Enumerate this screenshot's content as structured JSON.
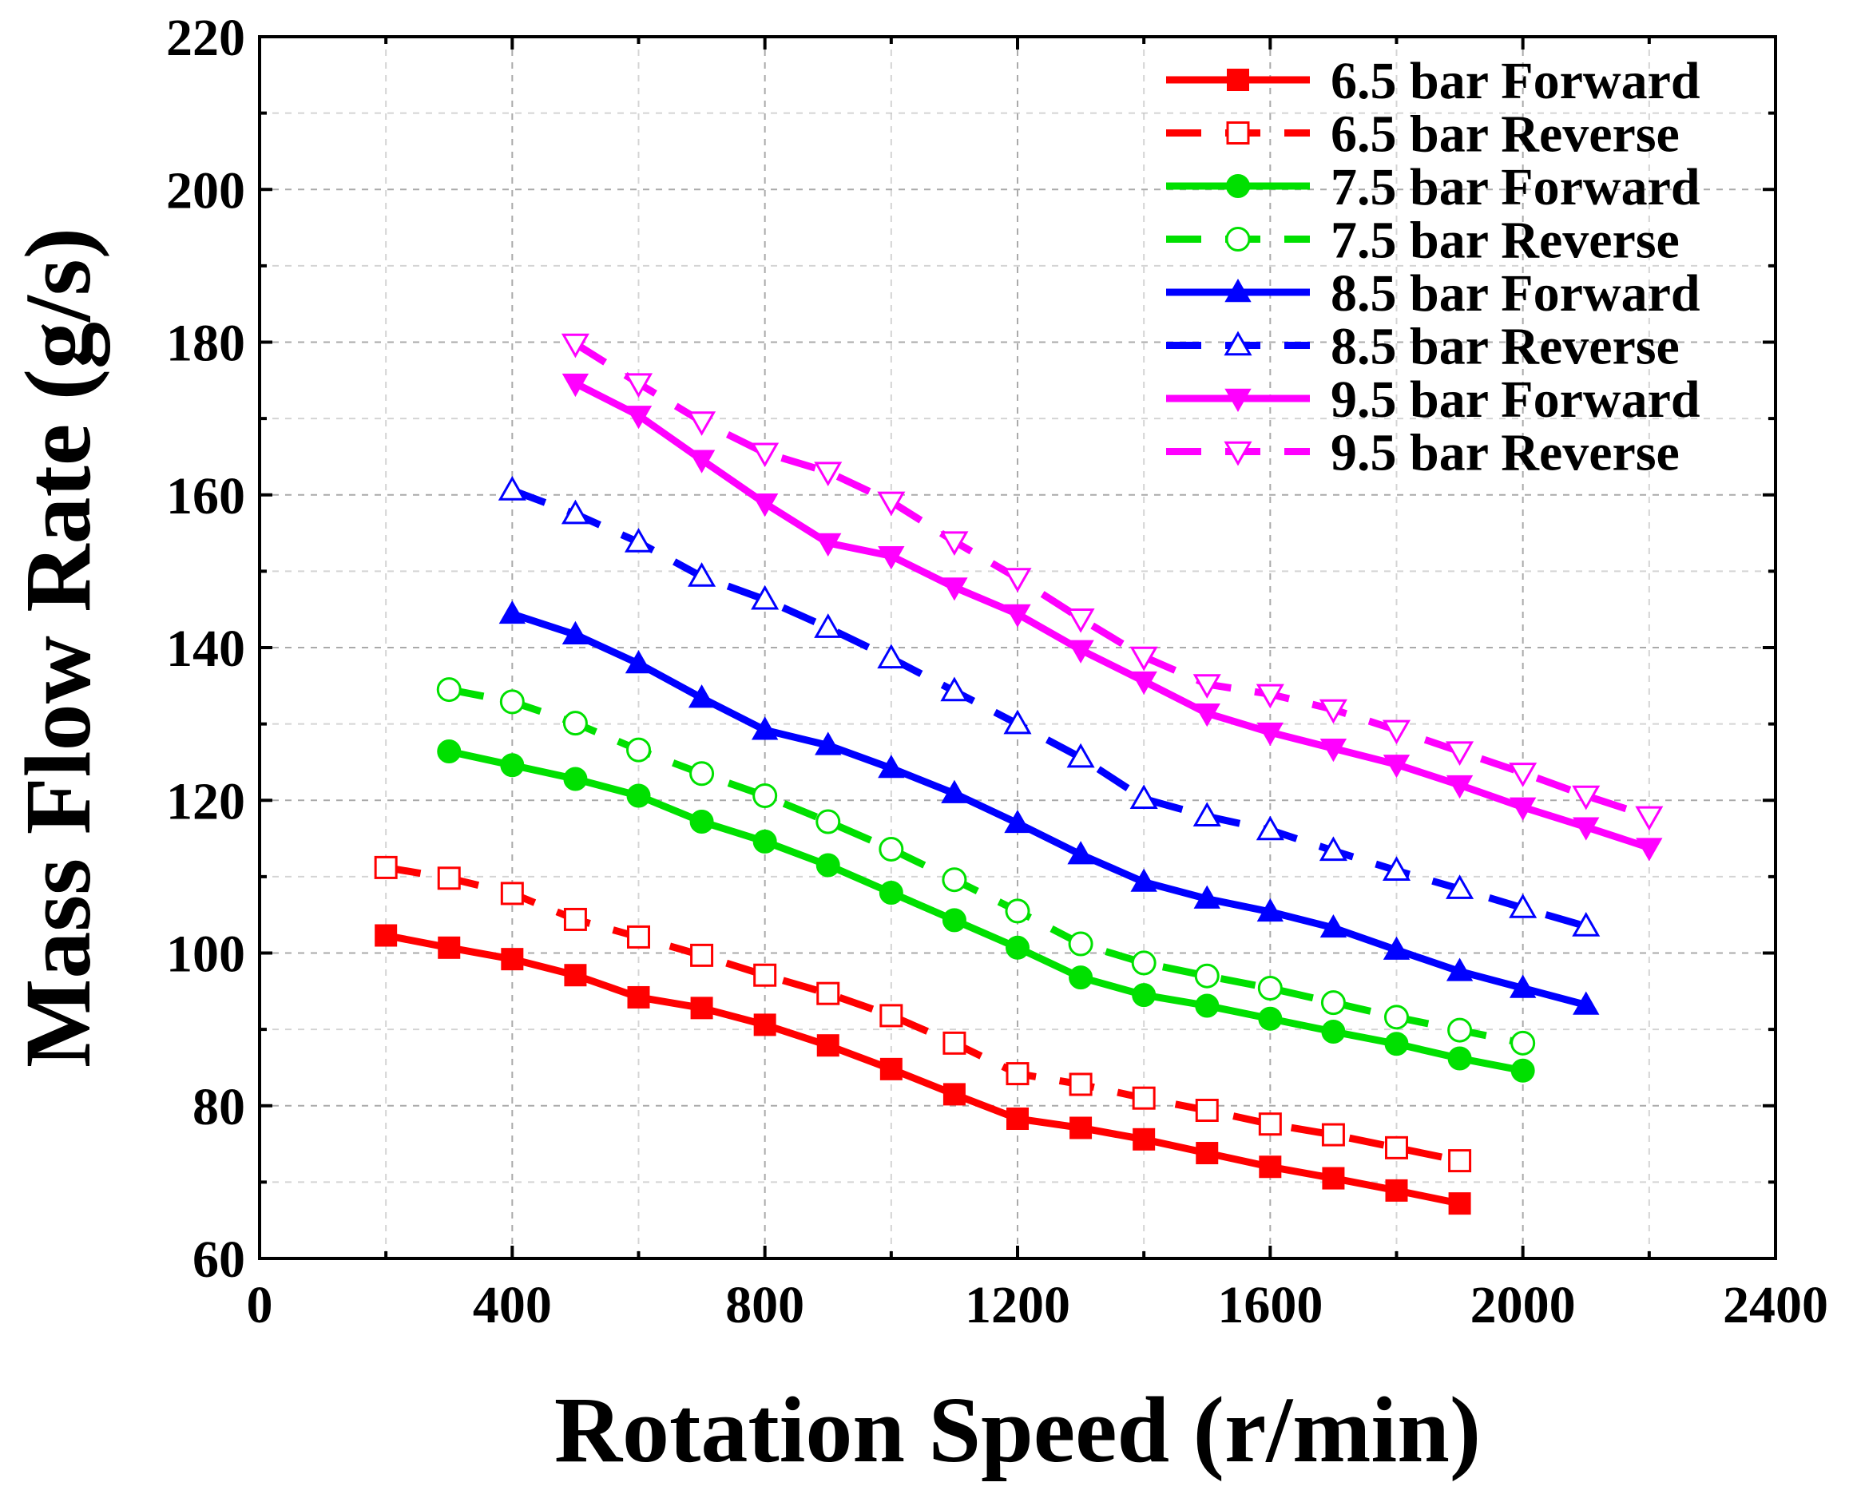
{
  "chart_data": {
    "type": "line",
    "title": "",
    "xlabel": "Rotation Speed (r/min)",
    "ylabel": "Mass Flow Rate (g/s)",
    "xlim": [
      0,
      2400
    ],
    "ylim": [
      60,
      220
    ],
    "xticks": [
      0,
      400,
      800,
      1200,
      1600,
      2000,
      2400
    ],
    "yticks": [
      60,
      80,
      100,
      120,
      140,
      160,
      180,
      200,
      220
    ],
    "grid": true,
    "legend_position": "top-right",
    "series": [
      {
        "name": "6.5 bar Forward",
        "color": "#ff0000",
        "line": "solid",
        "marker": "square",
        "filled": true,
        "x": [
          200,
          300,
          400,
          500,
          600,
          700,
          800,
          900,
          1000,
          1100,
          1200,
          1300,
          1400,
          1500,
          1600,
          1700,
          1800,
          1900
        ],
        "y": [
          102.3,
          100.7,
          99.2,
          97.1,
          94.2,
          92.8,
          90.6,
          87.9,
          84.8,
          81.5,
          78.3,
          77.1,
          75.6,
          73.8,
          72.0,
          70.5,
          68.9,
          67.2
        ]
      },
      {
        "name": "6.5 bar Reverse",
        "color": "#ff0000",
        "line": "dashed",
        "marker": "square",
        "filled": false,
        "x": [
          200,
          300,
          400,
          500,
          600,
          700,
          800,
          900,
          1000,
          1100,
          1200,
          1300,
          1400,
          1500,
          1600,
          1700,
          1800,
          1900
        ],
        "y": [
          111.2,
          109.8,
          107.8,
          104.4,
          102.1,
          99.7,
          97.1,
          94.7,
          91.8,
          88.2,
          84.2,
          82.8,
          81.0,
          79.4,
          77.6,
          76.2,
          74.5,
          72.8
        ]
      },
      {
        "name": "7.5 bar Forward",
        "color": "#00e000",
        "line": "solid",
        "marker": "circle",
        "filled": true,
        "x": [
          300,
          400,
          500,
          600,
          700,
          800,
          900,
          1000,
          1100,
          1200,
          1300,
          1400,
          1500,
          1600,
          1700,
          1800,
          1900,
          2000
        ],
        "y": [
          126.4,
          124.6,
          122.8,
          120.6,
          117.2,
          114.6,
          111.5,
          107.9,
          104.3,
          100.7,
          96.8,
          94.5,
          93.1,
          91.4,
          89.7,
          88.1,
          86.2,
          84.6
        ]
      },
      {
        "name": "7.5 bar Reverse",
        "color": "#00e000",
        "line": "dashed",
        "marker": "circle",
        "filled": false,
        "x": [
          300,
          400,
          500,
          600,
          700,
          800,
          900,
          1000,
          1100,
          1200,
          1300,
          1400,
          1500,
          1600,
          1700,
          1800,
          1900,
          2000
        ],
        "y": [
          134.5,
          132.9,
          130.1,
          126.6,
          123.5,
          120.6,
          117.2,
          113.6,
          109.6,
          105.5,
          101.2,
          98.7,
          97.0,
          95.4,
          93.5,
          91.6,
          89.9,
          88.2
        ]
      },
      {
        "name": "8.5 bar Forward",
        "color": "#0000ff",
        "line": "solid",
        "marker": "triangle-up",
        "filled": true,
        "x": [
          400,
          500,
          600,
          700,
          800,
          900,
          1000,
          1100,
          1200,
          1300,
          1400,
          1500,
          1600,
          1700,
          1800,
          1900,
          2000,
          2100
        ],
        "y": [
          144.4,
          141.7,
          137.9,
          133.4,
          129.2,
          127.2,
          124.2,
          120.9,
          117.0,
          112.9,
          109.3,
          107.1,
          105.4,
          103.3,
          100.4,
          97.6,
          95.4,
          93.2
        ]
      },
      {
        "name": "8.5 bar Reverse",
        "color": "#0000ff",
        "line": "dashed",
        "marker": "triangle-up",
        "filled": false,
        "x": [
          400,
          500,
          600,
          700,
          800,
          900,
          1000,
          1100,
          1200,
          1300,
          1400,
          1500,
          1600,
          1700,
          1800,
          1900,
          2000,
          2100
        ],
        "y": [
          160.6,
          157.5,
          153.8,
          149.3,
          146.3,
          142.6,
          138.6,
          134.3,
          130.0,
          125.6,
          120.2,
          117.9,
          116.1,
          113.4,
          110.8,
          108.4,
          105.9,
          103.5
        ]
      },
      {
        "name": "9.5 bar Forward",
        "color": "#ff00ff",
        "line": "solid",
        "marker": "triangle-down",
        "filled": true,
        "x": [
          500,
          600,
          700,
          800,
          900,
          1000,
          1100,
          1200,
          1300,
          1400,
          1500,
          1600,
          1700,
          1800,
          1900,
          2000,
          2100,
          2200
        ],
        "y": [
          174.6,
          170.4,
          164.6,
          158.9,
          153.7,
          152.0,
          147.9,
          144.4,
          139.7,
          135.6,
          131.4,
          128.9,
          126.8,
          124.7,
          122.0,
          119.1,
          116.5,
          113.8
        ]
      },
      {
        "name": "9.5 bar Reverse",
        "color": "#ff00ff",
        "line": "dashed",
        "marker": "triangle-down",
        "filled": false,
        "x": [
          500,
          600,
          700,
          800,
          900,
          1000,
          1100,
          1200,
          1300,
          1400,
          1500,
          1600,
          1700,
          1800,
          1900,
          2000,
          2100,
          2200
        ],
        "y": [
          179.8,
          174.6,
          169.6,
          165.5,
          163.0,
          159.1,
          153.9,
          149.1,
          143.8,
          138.8,
          135.2,
          133.9,
          131.9,
          129.2,
          126.4,
          123.6,
          120.6,
          117.9
        ]
      }
    ]
  }
}
